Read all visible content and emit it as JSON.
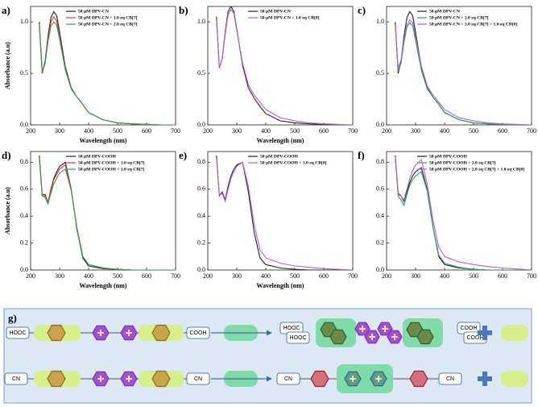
{
  "chart_data": [
    {
      "type": "line",
      "label": "a)",
      "x_label": "Wavelength (nm)",
      "y_label": "Absorbance (a.u)",
      "x": [
        230,
        240,
        250,
        260,
        270,
        280,
        290,
        300,
        320,
        340,
        360,
        380,
        400,
        450,
        500,
        550,
        600,
        650,
        700
      ],
      "xlim": [
        200,
        700
      ],
      "xticks": [
        200,
        300,
        400,
        500,
        600,
        700
      ],
      "ylim": [
        0,
        1.15
      ],
      "yticks": [
        {
          "value": 0,
          "label": "0.0"
        },
        0.5,
        {
          "value": 1,
          "label": "1.0"
        }
      ],
      "series": [
        {
          "name": "50 μM DPV-CN",
          "color": "#222222",
          "values": [
            1.0,
            0.5,
            0.62,
            0.86,
            1.04,
            1.1,
            1.06,
            0.9,
            0.56,
            0.36,
            0.27,
            0.2,
            0.12,
            0.05,
            0.02,
            0.01,
            0.005,
            0,
            0
          ]
        },
        {
          "name": "50 μM DPV-CN + 1.0 eq CB[7]",
          "color": "#e8312f",
          "values": [
            0.98,
            0.5,
            0.6,
            0.83,
            1.0,
            1.05,
            1.01,
            0.86,
            0.54,
            0.35,
            0.27,
            0.2,
            0.12,
            0.05,
            0.02,
            0.01,
            0.005,
            0,
            0
          ]
        },
        {
          "name": "50 μM DPV-CN + 2.0 eq CB[7]",
          "color": "#2ca05a",
          "values": [
            0.97,
            0.52,
            0.6,
            0.81,
            0.96,
            1.0,
            0.97,
            0.83,
            0.53,
            0.35,
            0.27,
            0.2,
            0.12,
            0.05,
            0.02,
            0.01,
            0.005,
            0,
            0
          ]
        }
      ]
    },
    {
      "type": "line",
      "label": "b)",
      "x_label": "Wavelength (nm)",
      "x": [
        230,
        240,
        250,
        260,
        270,
        280,
        290,
        300,
        320,
        340,
        360,
        380,
        400,
        450,
        500,
        550,
        600,
        650,
        700
      ],
      "xlim": [
        200,
        700
      ],
      "xticks": [
        200,
        300,
        400,
        500,
        600,
        700
      ],
      "ylim": [
        0,
        1.15
      ],
      "yticks": [
        {
          "value": 0,
          "label": "0.0"
        },
        0.5,
        {
          "value": 1,
          "label": "1.0"
        }
      ],
      "series": [
        {
          "name": "50 μM DPV-CN",
          "color": "#222222",
          "values": [
            1.05,
            0.55,
            0.65,
            0.9,
            1.1,
            1.15,
            1.1,
            0.93,
            0.58,
            0.36,
            0.26,
            0.18,
            0.11,
            0.04,
            0.02,
            0.01,
            0.005,
            0,
            0
          ]
        },
        {
          "name": "50 μM DPV-CN + 1.0 eq CB[8]",
          "color": "#b45fd6",
          "values": [
            1.02,
            0.55,
            0.65,
            0.88,
            1.07,
            1.12,
            1.08,
            0.92,
            0.6,
            0.39,
            0.29,
            0.22,
            0.15,
            0.07,
            0.04,
            0.02,
            0.01,
            0.005,
            0
          ]
        }
      ]
    },
    {
      "type": "line",
      "label": "c)",
      "x": [
        230,
        240,
        250,
        260,
        270,
        280,
        290,
        300,
        320,
        340,
        360,
        380,
        400,
        450,
        500,
        550,
        600,
        650,
        700
      ],
      "xlim": [
        200,
        700
      ],
      "xticks": [
        200,
        300,
        400,
        500,
        600,
        700
      ],
      "ylim": [
        0,
        1.15
      ],
      "yticks": [
        {
          "value": 0,
          "label": "0.0"
        },
        0.5,
        {
          "value": 1,
          "label": "1.0"
        }
      ],
      "series": [
        {
          "name": "50 μM DPV-CN",
          "color": "#222222",
          "values": [
            1.0,
            0.5,
            0.62,
            0.86,
            1.04,
            1.1,
            1.06,
            0.9,
            0.56,
            0.36,
            0.27,
            0.2,
            0.12,
            0.05,
            0.02,
            0.01,
            0.005,
            0,
            0
          ]
        },
        {
          "name": "50 μM DPV-CN + 2.0 eq CB[7]",
          "color": "#2ca05a",
          "values": [
            0.97,
            0.52,
            0.6,
            0.8,
            0.95,
            0.99,
            0.96,
            0.82,
            0.53,
            0.35,
            0.27,
            0.2,
            0.12,
            0.05,
            0.02,
            0.01,
            0.005,
            0,
            0
          ]
        },
        {
          "name": "50 μM DPV-CN + 2.0 eq CB[7] + 1.0 eq CB[8]",
          "color": "#b45fd6",
          "values": [
            0.96,
            0.55,
            0.63,
            0.82,
            0.97,
            1.02,
            0.99,
            0.86,
            0.57,
            0.38,
            0.29,
            0.22,
            0.15,
            0.07,
            0.04,
            0.02,
            0.01,
            0.005,
            0
          ]
        }
      ]
    },
    {
      "type": "line",
      "label": "d)",
      "x_label": "Wavelength (nm)",
      "y_label": "Absorbance (a.u)",
      "x": [
        230,
        240,
        250,
        260,
        270,
        280,
        290,
        300,
        320,
        340,
        360,
        380,
        400,
        450,
        500,
        550,
        600,
        650,
        700
      ],
      "xlim": [
        200,
        700
      ],
      "xticks": [
        200,
        300,
        400,
        500,
        600,
        700
      ],
      "ylim": [
        0,
        0.88
      ],
      "yticks": [
        {
          "value": 0,
          "label": "0.0"
        },
        0.2,
        0.4,
        0.6,
        0.8
      ],
      "series": [
        {
          "name": "50 μM DPV-COOH",
          "color": "#222222",
          "values": [
            0.85,
            0.56,
            0.56,
            0.5,
            0.6,
            0.68,
            0.73,
            0.77,
            0.8,
            0.6,
            0.3,
            0.09,
            0.03,
            0.01,
            0.005,
            0,
            0,
            0,
            0
          ]
        },
        {
          "name": "50 μM DPV-COOH + 1.0 eq CB[7]",
          "color": "#e8312f",
          "values": [
            0.84,
            0.55,
            0.55,
            0.5,
            0.59,
            0.67,
            0.71,
            0.75,
            0.78,
            0.6,
            0.31,
            0.1,
            0.04,
            0.015,
            0.005,
            0,
            0,
            0,
            0
          ]
        },
        {
          "name": "50 μM DPV-COOH + 2.0 eq CB[7]",
          "color": "#2ca05a",
          "values": [
            0.83,
            0.55,
            0.54,
            0.49,
            0.57,
            0.64,
            0.68,
            0.72,
            0.75,
            0.59,
            0.31,
            0.1,
            0.04,
            0.015,
            0.005,
            0,
            0,
            0,
            0
          ]
        }
      ]
    },
    {
      "type": "line",
      "label": "e)",
      "x_label": "Wavelength (nm)",
      "x": [
        230,
        240,
        250,
        260,
        270,
        280,
        290,
        300,
        320,
        340,
        360,
        380,
        400,
        450,
        500,
        550,
        600,
        650,
        700
      ],
      "xlim": [
        200,
        700
      ],
      "xticks": [
        200,
        300,
        400,
        500,
        600,
        700
      ],
      "ylim": [
        0,
        0.88
      ],
      "yticks": [
        {
          "value": 0,
          "label": "0.0"
        },
        0.2,
        0.4,
        0.6,
        0.8
      ],
      "series": [
        {
          "name": "50 μM DPV-COOH",
          "color": "#222222",
          "values": [
            0.85,
            0.55,
            0.58,
            0.52,
            0.62,
            0.7,
            0.75,
            0.78,
            0.8,
            0.58,
            0.28,
            0.09,
            0.04,
            0.015,
            0.005,
            0,
            0,
            0,
            0
          ]
        },
        {
          "name": "50 μM DPV-COOH + 1.0 eq CB[8]",
          "color": "#b45fd6",
          "values": [
            0.83,
            0.55,
            0.57,
            0.51,
            0.6,
            0.68,
            0.73,
            0.77,
            0.8,
            0.62,
            0.34,
            0.15,
            0.09,
            0.05,
            0.03,
            0.02,
            0.01,
            0.005,
            0
          ]
        }
      ]
    },
    {
      "type": "line",
      "label": "f)",
      "x": [
        230,
        240,
        250,
        260,
        270,
        280,
        290,
        300,
        320,
        340,
        360,
        380,
        400,
        450,
        500,
        550,
        600,
        650,
        700
      ],
      "xlim": [
        200,
        700
      ],
      "xticks": [
        200,
        300,
        400,
        500,
        600,
        700
      ],
      "ylim": [
        0,
        0.88
      ],
      "yticks": [
        {
          "value": 0,
          "label": "0.0"
        },
        0.2,
        0.4,
        0.6,
        0.8
      ],
      "series": [
        {
          "name": "50 μM DPV-COOH",
          "color": "#222222",
          "values": [
            0.85,
            0.57,
            0.55,
            0.51,
            0.58,
            0.65,
            0.7,
            0.73,
            0.76,
            0.6,
            0.32,
            0.1,
            0.04,
            0.015,
            0.005,
            0,
            0,
            0,
            0
          ]
        },
        {
          "name": "50 μM DPV-COOH + 2.0 eq CB[7]",
          "color": "#2ca05a",
          "values": [
            0.84,
            0.55,
            0.52,
            0.48,
            0.56,
            0.63,
            0.67,
            0.7,
            0.73,
            0.59,
            0.32,
            0.11,
            0.05,
            0.02,
            0.005,
            0,
            0,
            0,
            0
          ]
        },
        {
          "name": "50 μM DPV-COOH + 2.0 eq CB[7] + 1.0 eq CB[8]",
          "color": "#b45fd6",
          "values": [
            0.84,
            0.56,
            0.55,
            0.52,
            0.6,
            0.68,
            0.74,
            0.78,
            0.82,
            0.64,
            0.37,
            0.17,
            0.1,
            0.06,
            0.04,
            0.025,
            0.015,
            0.008,
            0
          ]
        }
      ]
    }
  ],
  "diagram": {
    "label": "g)",
    "row1": {
      "reactant": [
        "HOOC",
        "COOH"
      ],
      "product": [
        "HOOC",
        "HOOC",
        "COOH",
        "COOH"
      ]
    },
    "row2": {
      "reactant": [
        "CN",
        "CN"
      ],
      "product": [
        "CN",
        "CN"
      ]
    }
  }
}
